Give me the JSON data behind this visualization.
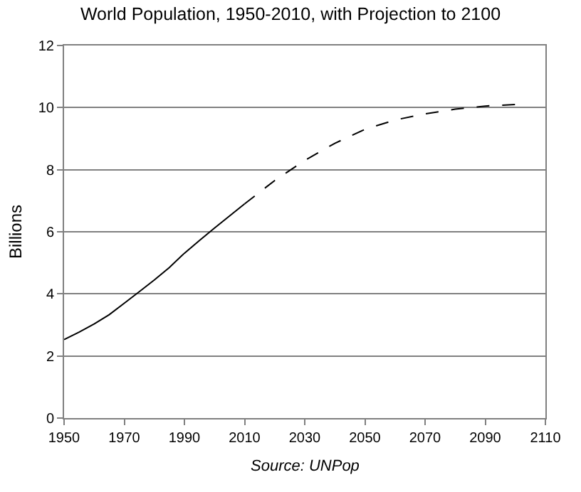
{
  "chart_data": {
    "type": "line",
    "title": "World Population, 1950-2010, with Projection to 2100",
    "ylabel": "Billions",
    "annotations": [
      "Source: UNPop"
    ],
    "series": [
      {
        "color": "#000000",
        "line_style": "solid",
        "x": [
          1950,
          1955,
          1960,
          1965,
          1970,
          1975,
          1980,
          1985,
          1990,
          1995,
          2000,
          2005,
          2010
        ],
        "values": [
          2.53,
          2.77,
          3.03,
          3.33,
          3.7,
          4.07,
          4.45,
          4.85,
          5.31,
          5.72,
          6.12,
          6.51,
          6.9
        ]
      },
      {
        "color": "#000000",
        "line_style": "dashed",
        "x": [
          2010,
          2020,
          2030,
          2040,
          2050,
          2060,
          2070,
          2080,
          2090,
          2100
        ],
        "values": [
          6.9,
          7.65,
          8.3,
          8.85,
          9.3,
          9.6,
          9.8,
          9.95,
          10.05,
          10.1
        ]
      }
    ],
    "xlim": [
      1950,
      2110
    ],
    "xticks": [
      1950,
      1970,
      1990,
      2010,
      2030,
      2050,
      2070,
      2090,
      2110
    ],
    "ylim": [
      0,
      12
    ],
    "yticks": [
      0,
      2,
      4,
      6,
      8,
      10,
      12
    ],
    "grid": "y"
  }
}
